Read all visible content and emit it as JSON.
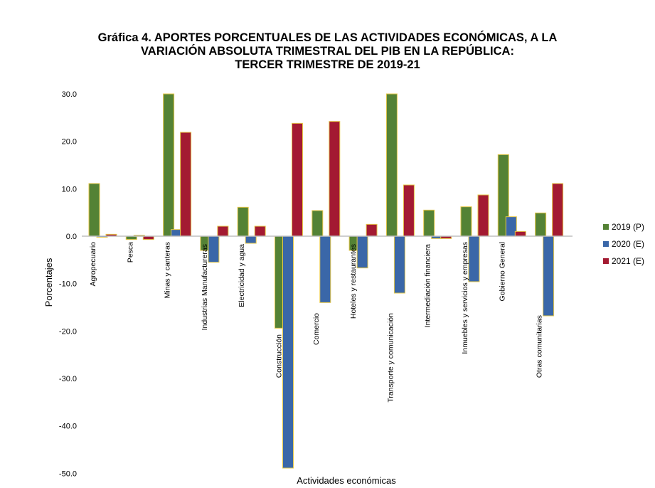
{
  "chart_data": {
    "type": "bar",
    "title_lines": [
      "Gráfica 4. APORTES PORCENTUALES DE LAS ACTIVIDADES ECONÓMICAS, A LA",
      "VARIACIÓN ABSOLUTA TRIMESTRAL  DEL PIB  EN LA  REPÚBLICA:",
      "TERCER TRIMESTRE DE 2019-21"
    ],
    "xlabel": "Actividades económicas",
    "ylabel": "Porcentajes",
    "ylim": [
      -50,
      30
    ],
    "yticks": [
      30,
      20,
      10,
      0,
      -10,
      -20,
      -30,
      -40,
      -50
    ],
    "ytick_labels": [
      "30.0",
      "20.0",
      "10.0",
      "0.0",
      "-10.0",
      "-20.0",
      "-30.0",
      "-40.0",
      "-50.0"
    ],
    "legend_position": "right",
    "categories": [
      "Agropecuario",
      "Pesca",
      "Minas y canteras",
      "Industrias Manufactureras",
      "Electricidad y agua",
      "Construcción",
      "Comercio",
      "Hoteles  y restaurantes",
      "Transporte y comunicación",
      "Intermediación  financiera",
      "Inmuebles  y servicios y empresas",
      "Gobierno  General",
      "Otras comunitarias"
    ],
    "series": [
      {
        "name": "2019 (P)",
        "color": "#548235",
        "values": [
          11.1,
          -0.7,
          30.0,
          -3.0,
          6.1,
          -19.4,
          5.4,
          -3.0,
          30.0,
          5.5,
          6.2,
          17.2,
          4.9
        ]
      },
      {
        "name": "2020 (E)",
        "color": "#3A67A8",
        "values": [
          0.0,
          0.2,
          1.4,
          -5.5,
          -1.5,
          -48.9,
          -14.0,
          -6.7,
          -12.0,
          -0.5,
          -9.6,
          4.1,
          -16.8
        ]
      },
      {
        "name": "2021 (E)",
        "color": "#A31A32",
        "values": [
          0.4,
          -0.7,
          21.9,
          2.1,
          2.1,
          23.8,
          24.2,
          2.5,
          10.8,
          -0.5,
          8.7,
          1.0,
          11.1
        ]
      }
    ]
  }
}
